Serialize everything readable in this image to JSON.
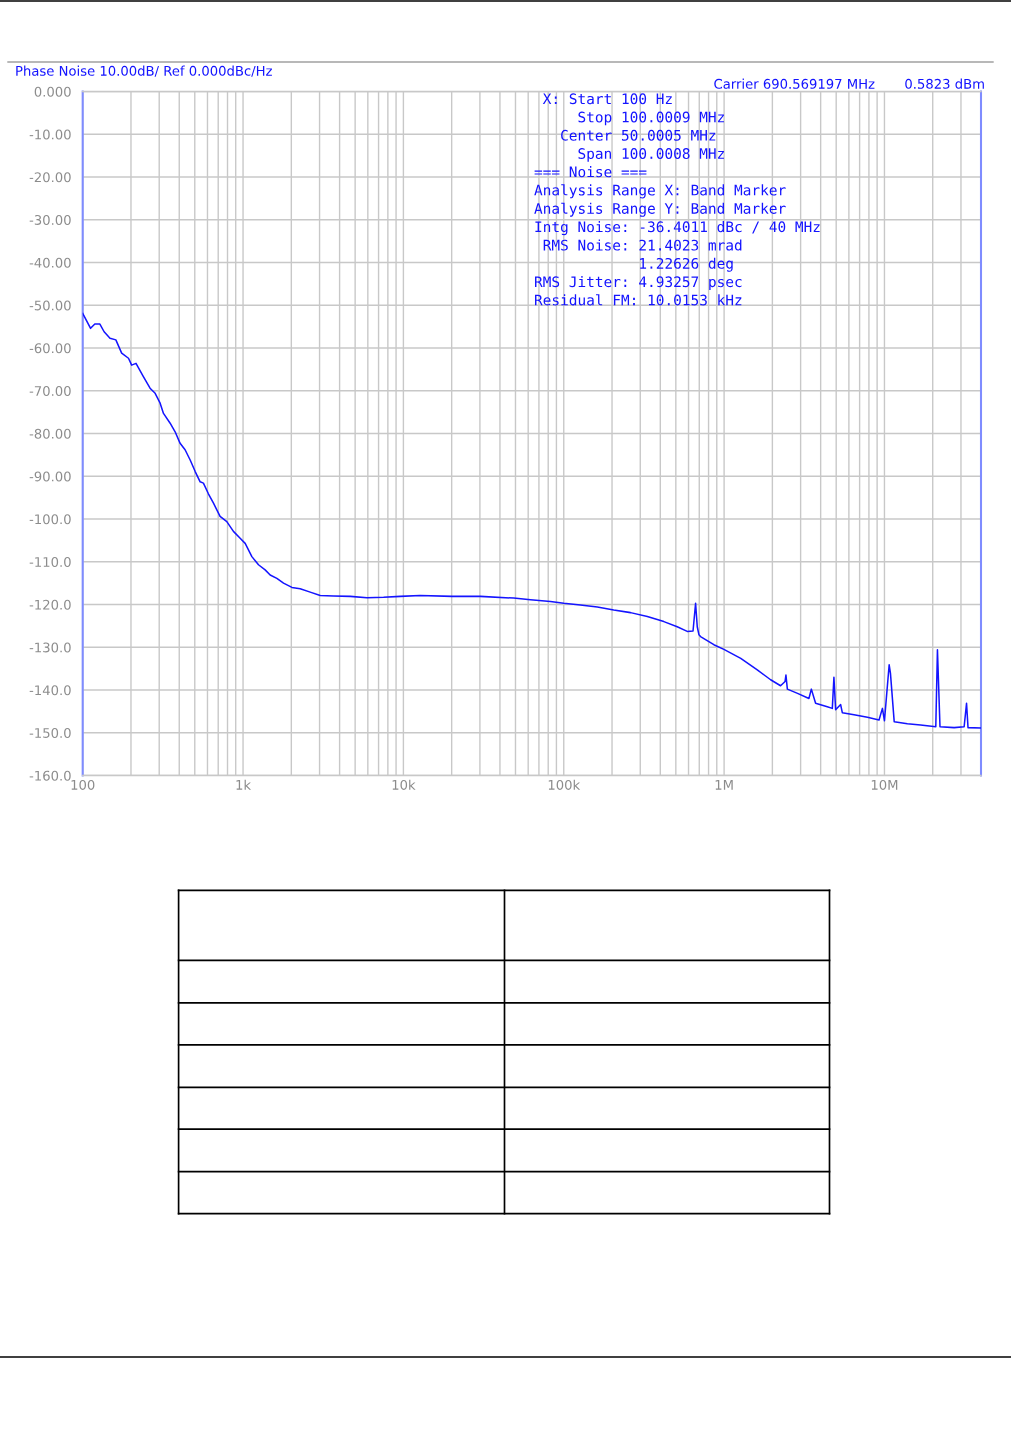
{
  "chart_data": {
    "type": "line",
    "title": "Phase Noise 10.00dB/ Ref 0.000dBc/Hz",
    "annotations": [
      "Carrier 690.569197 MHz",
      "0.5823 dBm",
      " X: Start 100 Hz\n     Stop 100.0009 MHz\n   Center 50.0005 MHz\n     Span 100.0008 MHz\n=== Noise ===\nAnalysis Range X: Band Marker\nAnalysis Range Y: Band Marker\nIntg Noise: -36.4011 dBc / 40 MHz\n RMS Noise: 21.4023 mrad\n            1.22626 deg\nRMS Jitter: 4.93257 psec\nResidual FM: 10.0153 kHz"
    ],
    "x": [
      100,
      112,
      119,
      128,
      136,
      148,
      161,
      175,
      193,
      202,
      215,
      239,
      263,
      283,
      304,
      319,
      351,
      377,
      405,
      435,
      468,
      503,
      540,
      566,
      608,
      654,
      719,
      792,
      871,
      959,
      1031,
      1135,
      1248,
      1373,
      1476,
      1625,
      1788,
      2017,
      2271,
      2623,
      3029,
      3665,
      4665,
      5929,
      7520,
      9570,
      12700,
      20100,
      30200,
      48700,
      62000,
      82600,
      100000,
      127000,
      162000,
      205000,
      261000,
      332000,
      421000,
      510000,
      589000,
      640000,
      664000,
      680000,
      697000,
      713000,
      863000,
      997000,
      1270000,
      1610000,
      1950000,
      2250000,
      2400000,
      2430000,
      2480000,
      2870000,
      3380000,
      3500000,
      3720000,
      4400000,
      4730000,
      4840000,
      4960000,
      5330000,
      5460000,
      6460000,
      7830000,
      9250000,
      9710000,
      10000000,
      10700000,
      10900000,
      11500000,
      13900000,
      16800000,
      20900000,
      21400000,
      22200000,
      27200000,
      31400000,
      32500000,
      33200000,
      39900000
    ],
    "series": [
      {
        "color": "#1414ff",
        "values": [
          -51.9,
          -55.4,
          -54.4,
          -54.4,
          -56.2,
          -57.7,
          -58.1,
          -61.2,
          -62.4,
          -64.0,
          -63.6,
          -66.7,
          -69.4,
          -70.6,
          -72.9,
          -75.3,
          -77.6,
          -79.6,
          -82.3,
          -83.8,
          -86.2,
          -88.9,
          -91.3,
          -91.6,
          -94.1,
          -96.3,
          -99.4,
          -100.6,
          -102.9,
          -104.5,
          -105.7,
          -108.8,
          -110.7,
          -111.9,
          -113.1,
          -113.9,
          -115.0,
          -116.0,
          -116.3,
          -117.1,
          -117.9,
          -118.0,
          -118.1,
          -118.4,
          -118.3,
          -118.1,
          -117.9,
          -118.1,
          -118.1,
          -118.5,
          -118.9,
          -119.3,
          -119.7,
          -120.1,
          -120.6,
          -121.3,
          -121.9,
          -122.8,
          -124.0,
          -125.2,
          -126.3,
          -126.2,
          -119.7,
          -125.2,
          -127.1,
          -127.5,
          -129.4,
          -130.5,
          -132.6,
          -135.3,
          -137.6,
          -139.0,
          -138.0,
          -136.5,
          -139.8,
          -140.8,
          -142.0,
          -139.8,
          -143.1,
          -143.9,
          -144.3,
          -137.0,
          -144.6,
          -143.4,
          -145.3,
          -145.8,
          -146.4,
          -147.0,
          -144.3,
          -147.2,
          -134.1,
          -136.1,
          -147.4,
          -147.9,
          -148.2,
          -148.6,
          -130.6,
          -148.6,
          -148.8,
          -148.6,
          -143.1,
          -148.8,
          -148.9
        ]
      }
    ],
    "log": "x",
    "line_style": "solid",
    "grid": true,
    "xlim": [
      100,
      40000000
    ],
    "ylim": [
      -160,
      0
    ],
    "xticks": [
      {
        "value": 100,
        "label": "100"
      },
      {
        "value": 200,
        "label": null
      },
      {
        "value": 300,
        "label": null
      },
      {
        "value": 400,
        "label": null
      },
      {
        "value": 500,
        "label": null
      },
      {
        "value": 600,
        "label": null
      },
      {
        "value": 700,
        "label": null
      },
      {
        "value": 800,
        "label": null
      },
      {
        "value": 900,
        "label": null
      },
      {
        "value": 1000,
        "label": "1k"
      },
      {
        "value": 2000,
        "label": null
      },
      {
        "value": 3000,
        "label": null
      },
      {
        "value": 4000,
        "label": null
      },
      {
        "value": 5000,
        "label": null
      },
      {
        "value": 6000,
        "label": null
      },
      {
        "value": 7000,
        "label": null
      },
      {
        "value": 8000,
        "label": null
      },
      {
        "value": 9000,
        "label": null
      },
      {
        "value": 10000,
        "label": "10k"
      },
      {
        "value": 20000,
        "label": null
      },
      {
        "value": 30000,
        "label": null
      },
      {
        "value": 40000,
        "label": null
      },
      {
        "value": 50000,
        "label": null
      },
      {
        "value": 60000,
        "label": null
      },
      {
        "value": 70000,
        "label": null
      },
      {
        "value": 80000,
        "label": null
      },
      {
        "value": 90000,
        "label": null
      },
      {
        "value": 100000,
        "label": "100k"
      },
      {
        "value": 200000,
        "label": null
      },
      {
        "value": 300000,
        "label": null
      },
      {
        "value": 400000,
        "label": null
      },
      {
        "value": 500000,
        "label": null
      },
      {
        "value": 600000,
        "label": null
      },
      {
        "value": 700000,
        "label": null
      },
      {
        "value": 800000,
        "label": null
      },
      {
        "value": 900000,
        "label": null
      },
      {
        "value": 1000000,
        "label": "1M"
      },
      {
        "value": 2000000,
        "label": null
      },
      {
        "value": 3000000,
        "label": null
      },
      {
        "value": 4000000,
        "label": null
      },
      {
        "value": 5000000,
        "label": null
      },
      {
        "value": 6000000,
        "label": null
      },
      {
        "value": 7000000,
        "label": null
      },
      {
        "value": 8000000,
        "label": null
      },
      {
        "value": 9000000,
        "label": null
      },
      {
        "value": 10000000,
        "label": "10M"
      },
      {
        "value": 20000000,
        "label": null
      },
      {
        "value": 30000000,
        "label": null
      }
    ],
    "yticks": [
      {
        "value": 0,
        "label": "0.000"
      },
      {
        "value": -10,
        "label": "-10.00"
      },
      {
        "value": -20,
        "label": "-20.00"
      },
      {
        "value": -30,
        "label": "-30.00"
      },
      {
        "value": -40,
        "label": "-40.00"
      },
      {
        "value": -50,
        "label": "-50.00"
      },
      {
        "value": -60,
        "label": "-60.00"
      },
      {
        "value": -70,
        "label": "-70.00"
      },
      {
        "value": -80,
        "label": "-80.00"
      },
      {
        "value": -90,
        "label": "-90.00"
      },
      {
        "value": -100,
        "label": "-100.0"
      },
      {
        "value": -110,
        "label": "-110.0"
      },
      {
        "value": -120,
        "label": "-120.0"
      },
      {
        "value": -130,
        "label": "-130.0"
      },
      {
        "value": -140,
        "label": "-140.0"
      },
      {
        "value": -150,
        "label": "-150.0"
      },
      {
        "value": -160,
        "label": "-160.0"
      }
    ]
  }
}
